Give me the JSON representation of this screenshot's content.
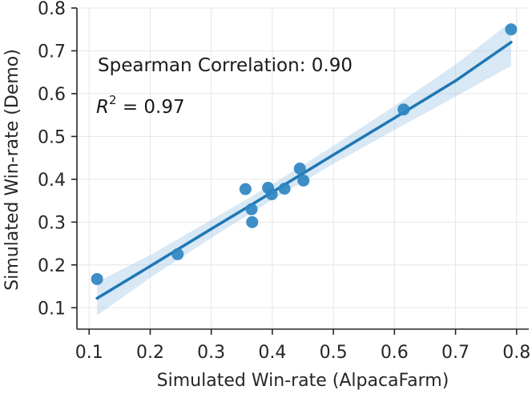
{
  "chart_data": {
    "type": "scatter",
    "title": "",
    "xlabel": "Simulated Win-rate (AlpacaFarm)",
    "ylabel": "Simulated Win-rate (Demo)",
    "xlim": [
      0.08,
      0.82
    ],
    "ylim": [
      0.05,
      0.8
    ],
    "x_ticks": [
      0.1,
      0.2,
      0.3,
      0.4,
      0.5,
      0.6,
      0.7,
      0.8
    ],
    "y_ticks": [
      0.1,
      0.2,
      0.3,
      0.4,
      0.5,
      0.6,
      0.7,
      0.8
    ],
    "x_tick_labels": [
      "0.1",
      "0.2",
      "0.3",
      "0.4",
      "0.5",
      "0.6",
      "0.7",
      "0.8"
    ],
    "y_tick_labels": [
      "0.1",
      "0.2",
      "0.3",
      "0.4",
      "0.5",
      "0.6",
      "0.7",
      "0.8"
    ],
    "grid": true,
    "points": [
      {
        "x": 0.113,
        "y": 0.167
      },
      {
        "x": 0.245,
        "y": 0.225
      },
      {
        "x": 0.356,
        "y": 0.377
      },
      {
        "x": 0.366,
        "y": 0.33
      },
      {
        "x": 0.367,
        "y": 0.3
      },
      {
        "x": 0.393,
        "y": 0.38
      },
      {
        "x": 0.399,
        "y": 0.365
      },
      {
        "x": 0.42,
        "y": 0.378
      },
      {
        "x": 0.445,
        "y": 0.425
      },
      {
        "x": 0.451,
        "y": 0.397
      },
      {
        "x": 0.615,
        "y": 0.563
      },
      {
        "x": 0.791,
        "y": 0.75
      }
    ],
    "regression": {
      "x": [
        0.113,
        0.2,
        0.3,
        0.4,
        0.5,
        0.6,
        0.7,
        0.791
      ],
      "fit": [
        0.122,
        0.197,
        0.284,
        0.37,
        0.457,
        0.543,
        0.63,
        0.72
      ],
      "ci_lower": [
        0.082,
        0.17,
        0.263,
        0.352,
        0.436,
        0.515,
        0.593,
        0.665
      ],
      "ci_upper": [
        0.16,
        0.223,
        0.305,
        0.388,
        0.478,
        0.571,
        0.668,
        0.768
      ]
    },
    "annotations": {
      "spearman": "Spearman Correlation: 0.90",
      "r2_prefix": "R",
      "r2_sup": "2",
      "r2_suffix": " = 0.97"
    },
    "colors": {
      "point": "#2e86c1",
      "line": "#1f77b4",
      "band": "#a9cbe8",
      "grid": "#e6e6e6",
      "axis": "#262626"
    }
  }
}
